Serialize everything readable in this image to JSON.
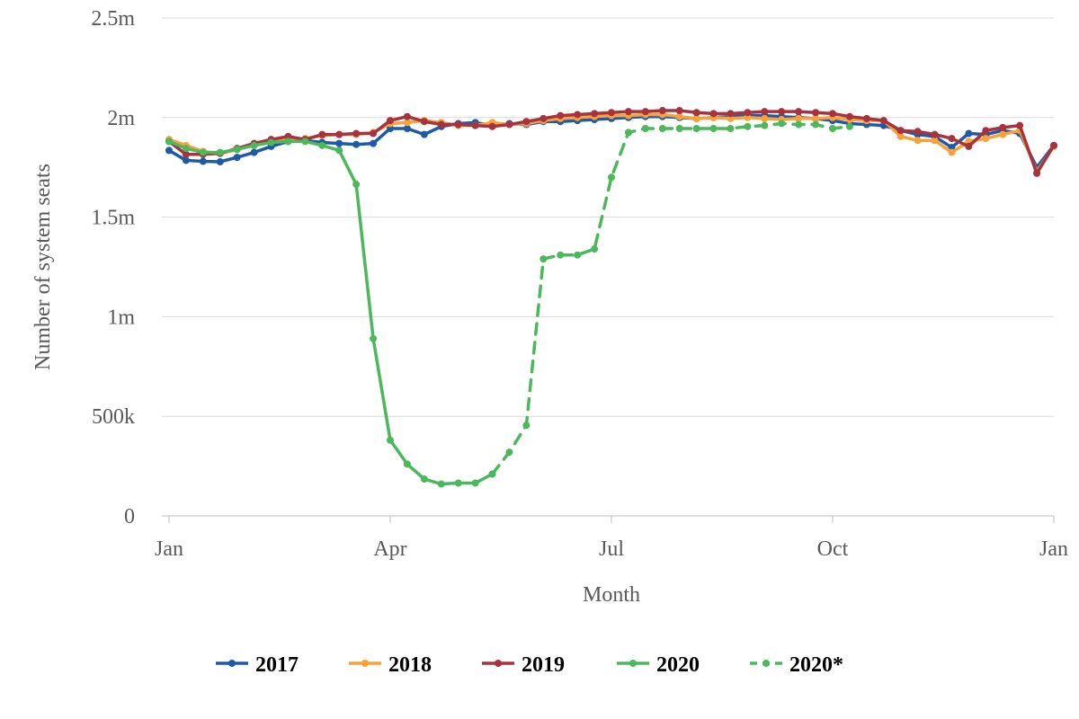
{
  "chart_data": {
    "type": "line",
    "title": "",
    "xlabel": "Month",
    "ylabel": "Number of system seats",
    "x_ticks": [
      {
        "label": "Jan",
        "week": 1
      },
      {
        "label": "Apr",
        "week": 14
      },
      {
        "label": "Jul",
        "week": 27
      },
      {
        "label": "Oct",
        "week": 40
      },
      {
        "label": "Jan",
        "week": 53
      }
    ],
    "xlim": [
      1,
      53
    ],
    "y_ticks": [
      {
        "label": "0",
        "value": 0
      },
      {
        "label": "500k",
        "value": 500000
      },
      {
        "label": "1m",
        "value": 1000000
      },
      {
        "label": "1.5m",
        "value": 1500000
      },
      {
        "label": "2m",
        "value": 2000000
      },
      {
        "label": "2.5m",
        "value": 2500000
      }
    ],
    "ylim": [
      0,
      2500000
    ],
    "grid": true,
    "legend_position": "bottom",
    "series": [
      {
        "name": "2017",
        "color": "#1f5aa6",
        "dashed": false,
        "points": [
          [
            1,
            1835000
          ],
          [
            2,
            1785000
          ],
          [
            3,
            1780000
          ],
          [
            4,
            1778000
          ],
          [
            5,
            1800000
          ],
          [
            6,
            1825000
          ],
          [
            7,
            1855000
          ],
          [
            8,
            1880000
          ],
          [
            9,
            1885000
          ],
          [
            10,
            1875000
          ],
          [
            11,
            1870000
          ],
          [
            12,
            1865000
          ],
          [
            13,
            1870000
          ],
          [
            14,
            1945000
          ],
          [
            15,
            1945000
          ],
          [
            16,
            1915000
          ],
          [
            17,
            1955000
          ],
          [
            18,
            1970000
          ],
          [
            19,
            1975000
          ],
          [
            20,
            1960000
          ],
          [
            21,
            1970000
          ],
          [
            22,
            1965000
          ],
          [
            23,
            1980000
          ],
          [
            24,
            1980000
          ],
          [
            25,
            1985000
          ],
          [
            26,
            1990000
          ],
          [
            27,
            1995000
          ],
          [
            28,
            2000000
          ],
          [
            29,
            2005000
          ],
          [
            30,
            2005000
          ],
          [
            31,
            2000000
          ],
          [
            32,
            1995000
          ],
          [
            33,
            2000000
          ],
          [
            34,
            2005000
          ],
          [
            35,
            2010000
          ],
          [
            36,
            2010000
          ],
          [
            37,
            2005000
          ],
          [
            38,
            2000000
          ],
          [
            39,
            1995000
          ],
          [
            40,
            1985000
          ],
          [
            41,
            1970000
          ],
          [
            42,
            1965000
          ],
          [
            43,
            1960000
          ],
          [
            44,
            1935000
          ],
          [
            45,
            1915000
          ],
          [
            46,
            1905000
          ],
          [
            47,
            1850000
          ],
          [
            48,
            1920000
          ],
          [
            49,
            1915000
          ],
          [
            50,
            1935000
          ],
          [
            51,
            1920000
          ],
          [
            52,
            1750000
          ],
          [
            53,
            1860000
          ]
        ]
      },
      {
        "name": "2018",
        "color": "#f7a23b",
        "dashed": false,
        "points": [
          [
            1,
            1890000
          ],
          [
            2,
            1860000
          ],
          [
            3,
            1830000
          ],
          [
            4,
            1820000
          ],
          [
            5,
            1840000
          ],
          [
            6,
            1865000
          ],
          [
            7,
            1880000
          ],
          [
            8,
            1890000
          ],
          [
            9,
            1895000
          ],
          [
            10,
            1910000
          ],
          [
            11,
            1915000
          ],
          [
            12,
            1915000
          ],
          [
            13,
            1925000
          ],
          [
            14,
            1970000
          ],
          [
            15,
            1975000
          ],
          [
            16,
            1985000
          ],
          [
            17,
            1975000
          ],
          [
            18,
            1960000
          ],
          [
            19,
            1960000
          ],
          [
            20,
            1975000
          ],
          [
            21,
            1965000
          ],
          [
            22,
            1970000
          ],
          [
            23,
            1985000
          ],
          [
            24,
            1995000
          ],
          [
            25,
            2000000
          ],
          [
            26,
            2005000
          ],
          [
            27,
            2010000
          ],
          [
            28,
            2010000
          ],
          [
            29,
            2015000
          ],
          [
            30,
            2015000
          ],
          [
            31,
            2005000
          ],
          [
            32,
            1995000
          ],
          [
            33,
            2000000
          ],
          [
            34,
            1995000
          ],
          [
            35,
            2000000
          ],
          [
            36,
            1995000
          ],
          [
            37,
            1990000
          ],
          [
            38,
            1995000
          ],
          [
            39,
            1995000
          ],
          [
            40,
            2000000
          ],
          [
            41,
            1990000
          ],
          [
            42,
            1985000
          ],
          [
            43,
            1985000
          ],
          [
            44,
            1905000
          ],
          [
            45,
            1885000
          ],
          [
            46,
            1885000
          ],
          [
            47,
            1825000
          ],
          [
            48,
            1880000
          ],
          [
            49,
            1895000
          ],
          [
            50,
            1915000
          ],
          [
            51,
            1935000
          ],
          [
            52,
            1730000
          ],
          [
            53,
            1855000
          ]
        ]
      },
      {
        "name": "2019",
        "color": "#a6333e",
        "dashed": false,
        "points": [
          [
            1,
            1880000
          ],
          [
            2,
            1815000
          ],
          [
            3,
            1815000
          ],
          [
            4,
            1820000
          ],
          [
            5,
            1845000
          ],
          [
            6,
            1870000
          ],
          [
            7,
            1890000
          ],
          [
            8,
            1905000
          ],
          [
            9,
            1890000
          ],
          [
            10,
            1915000
          ],
          [
            11,
            1915000
          ],
          [
            12,
            1920000
          ],
          [
            13,
            1920000
          ],
          [
            14,
            1985000
          ],
          [
            15,
            2005000
          ],
          [
            16,
            1980000
          ],
          [
            17,
            1965000
          ],
          [
            18,
            1965000
          ],
          [
            19,
            1960000
          ],
          [
            20,
            1955000
          ],
          [
            21,
            1965000
          ],
          [
            22,
            1980000
          ],
          [
            23,
            1995000
          ],
          [
            24,
            2010000
          ],
          [
            25,
            2015000
          ],
          [
            26,
            2020000
          ],
          [
            27,
            2025000
          ],
          [
            28,
            2030000
          ],
          [
            29,
            2030000
          ],
          [
            30,
            2035000
          ],
          [
            31,
            2035000
          ],
          [
            32,
            2025000
          ],
          [
            33,
            2020000
          ],
          [
            34,
            2020000
          ],
          [
            35,
            2025000
          ],
          [
            36,
            2030000
          ],
          [
            37,
            2030000
          ],
          [
            38,
            2030000
          ],
          [
            39,
            2025000
          ],
          [
            40,
            2020000
          ],
          [
            41,
            2005000
          ],
          [
            42,
            1995000
          ],
          [
            43,
            1985000
          ],
          [
            44,
            1935000
          ],
          [
            45,
            1930000
          ],
          [
            46,
            1915000
          ],
          [
            47,
            1895000
          ],
          [
            48,
            1855000
          ],
          [
            49,
            1935000
          ],
          [
            50,
            1950000
          ],
          [
            51,
            1960000
          ],
          [
            52,
            1720000
          ],
          [
            53,
            1860000
          ]
        ]
      },
      {
        "name": "2020",
        "color": "#4cb85c",
        "dashed": false,
        "points": [
          [
            1,
            1880000
          ],
          [
            2,
            1845000
          ],
          [
            3,
            1825000
          ],
          [
            4,
            1825000
          ],
          [
            5,
            1840000
          ],
          [
            6,
            1860000
          ],
          [
            7,
            1875000
          ],
          [
            8,
            1880000
          ],
          [
            9,
            1880000
          ],
          [
            10,
            1860000
          ],
          [
            11,
            1835000
          ],
          [
            12,
            1665000
          ],
          [
            13,
            890000
          ],
          [
            14,
            380000
          ],
          [
            15,
            260000
          ],
          [
            16,
            185000
          ],
          [
            17,
            160000
          ],
          [
            18,
            165000
          ],
          [
            19,
            165000
          ],
          [
            20,
            210000
          ]
        ]
      },
      {
        "name": "2020*",
        "color": "#4cb85c",
        "dashed": true,
        "points": [
          [
            20,
            210000
          ],
          [
            21,
            320000
          ],
          [
            22,
            455000
          ],
          [
            23,
            1290000
          ],
          [
            24,
            1310000
          ],
          [
            25,
            1310000
          ],
          [
            26,
            1340000
          ],
          [
            27,
            1700000
          ],
          [
            28,
            1925000
          ],
          [
            29,
            1945000
          ],
          [
            30,
            1945000
          ],
          [
            31,
            1945000
          ],
          [
            32,
            1945000
          ],
          [
            33,
            1945000
          ],
          [
            34,
            1945000
          ],
          [
            35,
            1955000
          ],
          [
            36,
            1960000
          ],
          [
            37,
            1970000
          ],
          [
            38,
            1965000
          ],
          [
            39,
            1965000
          ],
          [
            40,
            1945000
          ],
          [
            41,
            1955000
          ]
        ]
      }
    ]
  }
}
